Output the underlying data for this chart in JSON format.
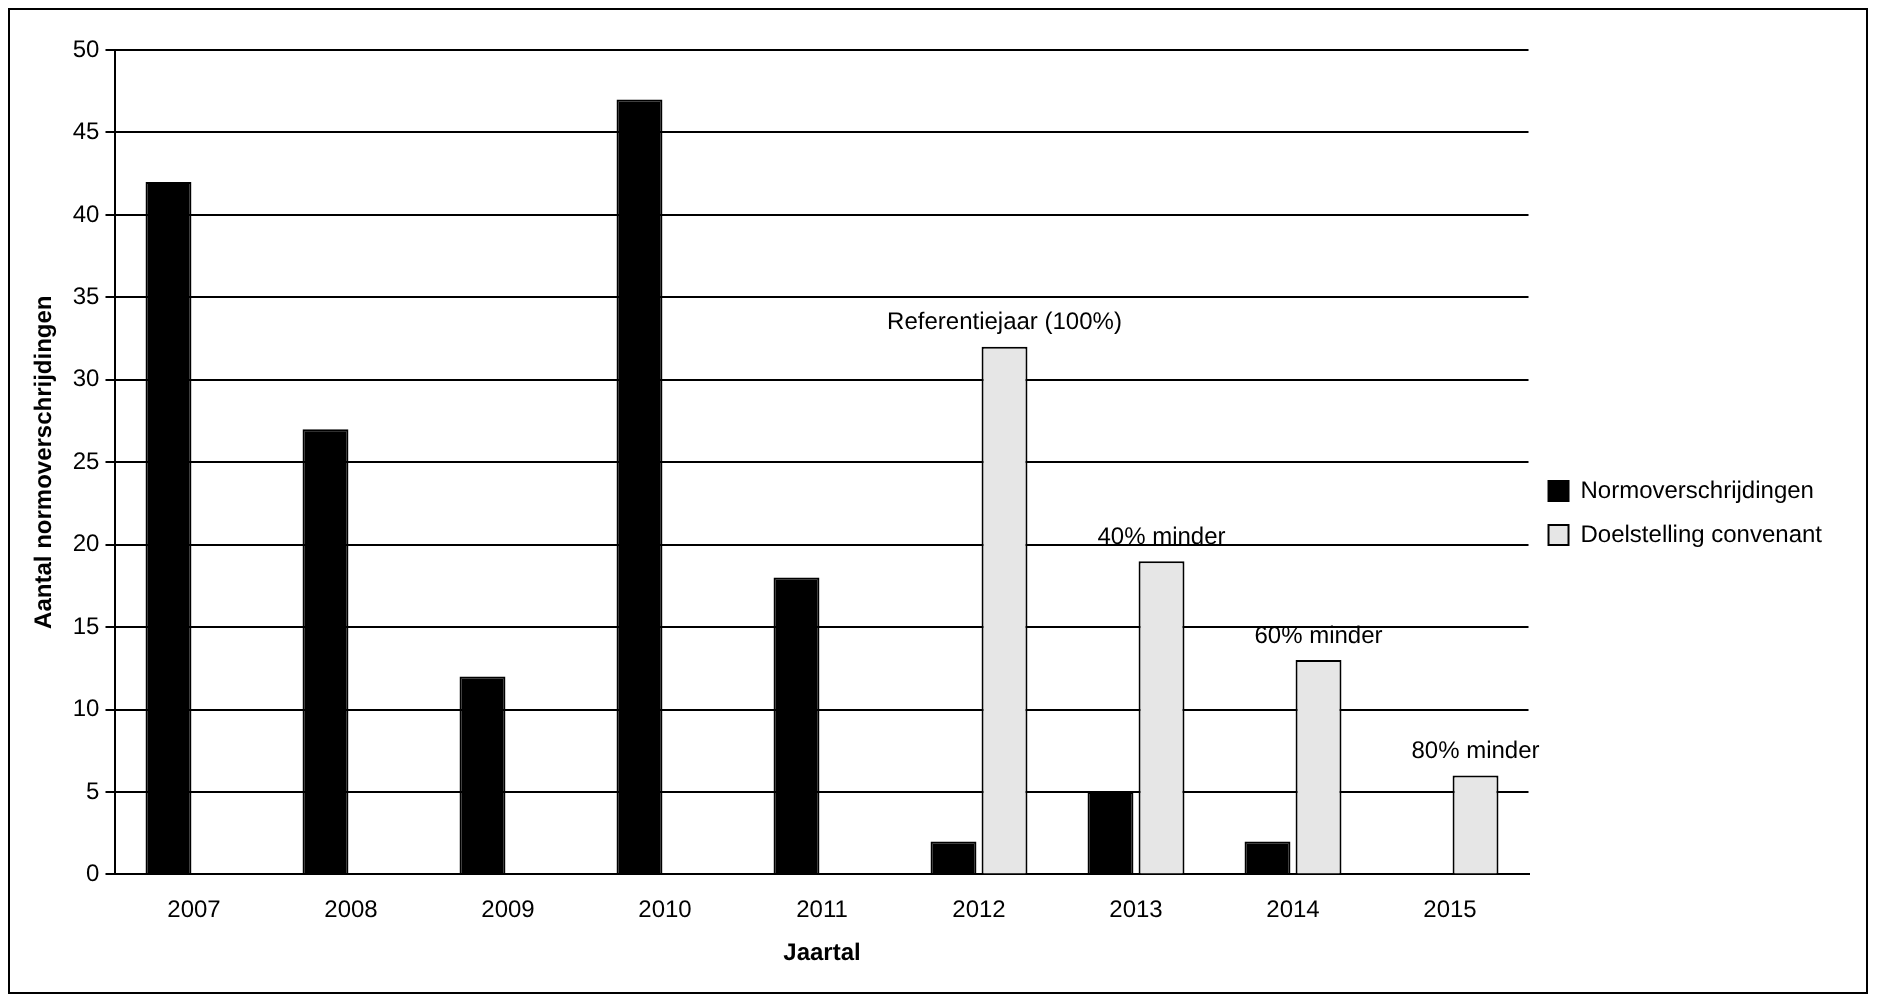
{
  "chart_data": {
    "type": "bar",
    "xlabel": "Jaartal",
    "ylabel": "Aantal normoverschrijdingen",
    "categories": [
      "2007",
      "2008",
      "2009",
      "2010",
      "2011",
      "2012",
      "2013",
      "2014",
      "2015"
    ],
    "series": [
      {
        "name": "Normoverschrijdingen",
        "color": "#000000",
        "values": [
          42,
          27,
          12,
          47,
          18,
          2,
          5,
          2,
          null
        ]
      },
      {
        "name": "Doelstelling convenant",
        "color": "#e6e6e6",
        "values": [
          null,
          null,
          null,
          null,
          null,
          32,
          19,
          13,
          6
        ]
      }
    ],
    "ylim": [
      0,
      50
    ],
    "yticks": [
      0,
      5,
      10,
      15,
      20,
      25,
      30,
      35,
      40,
      45,
      50
    ],
    "grid": "y",
    "legend": "right",
    "annotations": [
      {
        "text": "Referentiejaar (100%)",
        "x": "2012",
        "y": 32
      },
      {
        "text": "40% minder",
        "x": "2013",
        "y": 19
      },
      {
        "text": "60% minder",
        "x": "2014",
        "y": 13
      },
      {
        "text": "80% minder",
        "x": "2015",
        "y": 6
      }
    ]
  }
}
